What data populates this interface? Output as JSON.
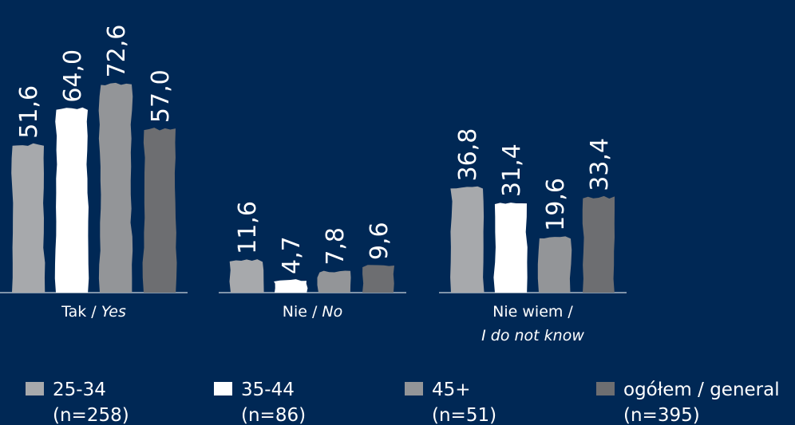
{
  "colors": {
    "background": "#002855",
    "series": [
      "#a7a9ac",
      "#ffffff",
      "#939598",
      "#6d6e71"
    ]
  },
  "legend": [
    {
      "name": "25-34",
      "note": "(n=258)"
    },
    {
      "name": "35-44",
      "note": "(n=86)"
    },
    {
      "name": "45+",
      "note": "(n=51)"
    },
    {
      "name": "ogółem / general",
      "note": "(n=395)"
    }
  ],
  "chart_data": {
    "type": "bar",
    "legend_placement": "bottom",
    "grid": false,
    "ylim": [
      0,
      80
    ],
    "categories": [
      {
        "main": "Tak / ",
        "italic": "Yes",
        "line2": ""
      },
      {
        "main": "Nie / ",
        "italic": "No",
        "line2": ""
      },
      {
        "main": "Nie wiem /",
        "italic": "",
        "line2": "I do not know"
      }
    ],
    "category_labels": [
      "Tak / Yes",
      "Nie / No",
      "Nie wiem / I do not know"
    ],
    "series": [
      {
        "name": "25-34 (n=258)",
        "values": [
          51.6,
          11.6,
          36.8
        ],
        "labels": [
          "51,6",
          "11,6",
          "36,8"
        ]
      },
      {
        "name": "35-44 (n=86)",
        "values": [
          64.0,
          4.7,
          31.4
        ],
        "labels": [
          "64,0",
          "4,7",
          "31,4"
        ]
      },
      {
        "name": "45+ (n=51)",
        "values": [
          72.6,
          7.8,
          19.6
        ],
        "labels": [
          "72,6",
          "7,8",
          "19,6"
        ]
      },
      {
        "name": "ogółem / general (n=395)",
        "values": [
          57.0,
          9.6,
          33.4
        ],
        "labels": [
          "57,0",
          "9,6",
          "33,4"
        ]
      }
    ]
  }
}
